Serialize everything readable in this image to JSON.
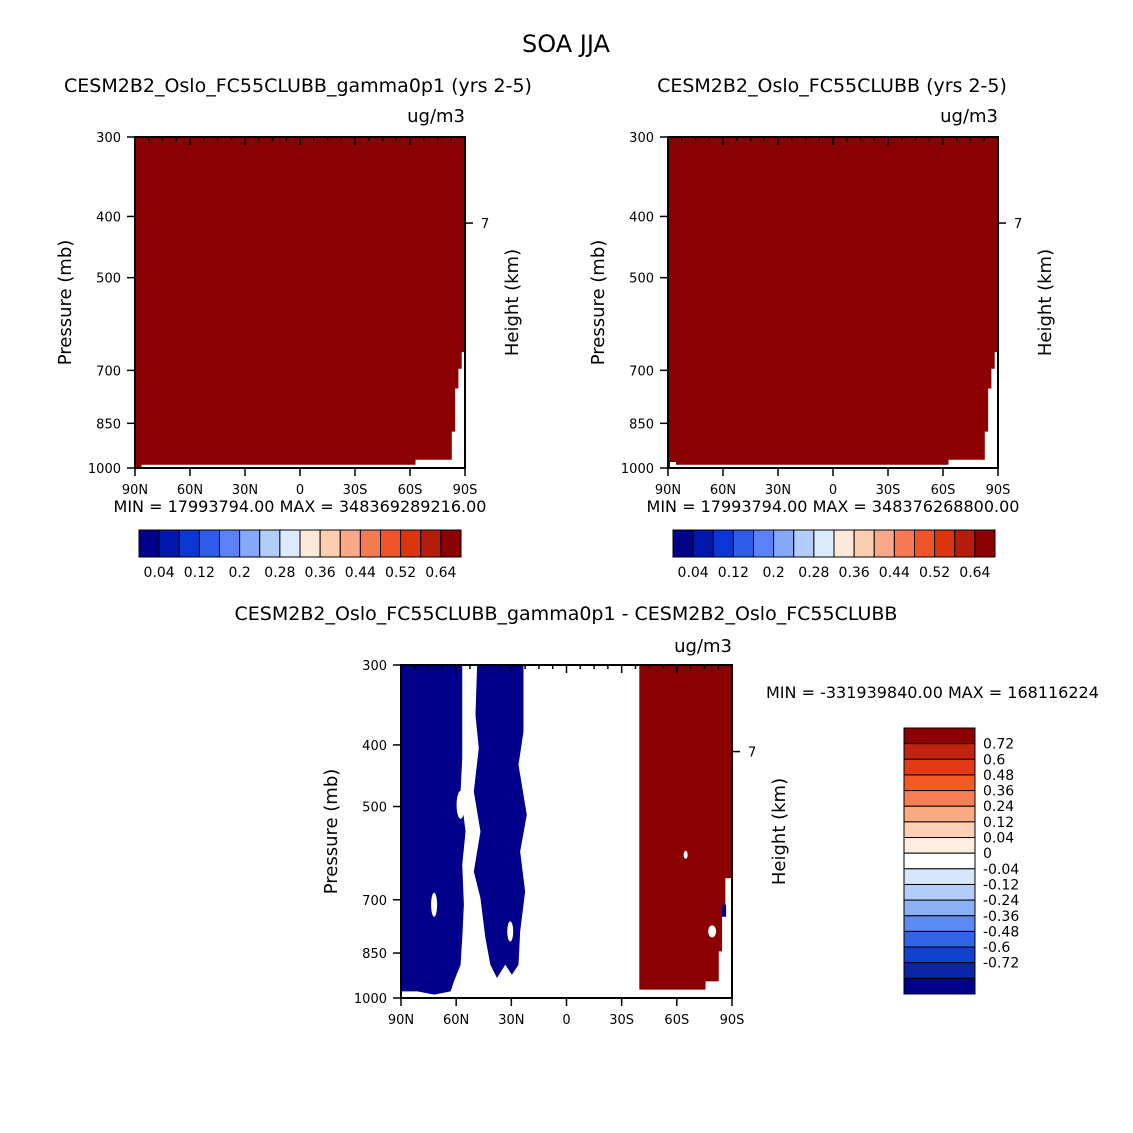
{
  "chart_data": {
    "title": "SOA JJA",
    "type": "heatmap",
    "panels": [
      {
        "id": "case",
        "title": "CESM2B2_Oslo_FC55CLUBB_gamma0p1 (yrs 2-5)",
        "units": "ug/m3",
        "ylabel": "Pressure (mb)",
        "ylabel_right": "Height (km)",
        "x_ticks": [
          "90N",
          "60N",
          "30N",
          "0",
          "30S",
          "60S",
          "90S"
        ],
        "y_ticks": [
          "300",
          "400",
          "500",
          "700",
          "850",
          "1000"
        ],
        "right_ticks": [
          "7"
        ],
        "stats": "MIN = 17993794.00   MAX = 348369289216.00",
        "fill": "above all levels (>0.64) everywhere except small gaps near the surface at southern high latitudes"
      },
      {
        "id": "control",
        "title": "CESM2B2_Oslo_FC55CLUBB (yrs 2-5)",
        "units": "ug/m3",
        "ylabel": "Pressure (mb)",
        "ylabel_right": "Height (km)",
        "x_ticks": [
          "90N",
          "60N",
          "30N",
          "0",
          "30S",
          "60S",
          "90S"
        ],
        "y_ticks": [
          "300",
          "400",
          "500",
          "700",
          "850",
          "1000"
        ],
        "right_ticks": [
          "7"
        ],
        "stats": "MIN = 17993794.00   MAX = 348376268800.00",
        "fill": "above all levels (>0.64) everywhere except small gaps near the surface at southern high latitudes"
      },
      {
        "id": "difference",
        "title": "CESM2B2_Oslo_FC55CLUBB_gamma0p1 - CESM2B2_Oslo_FC55CLUBB",
        "units": "ug/m3",
        "ylabel": "Pressure (mb)",
        "ylabel_right": "Height (km)",
        "x_ticks": [
          "90N",
          "60N",
          "30N",
          "0",
          "30S",
          "60S",
          "90S"
        ],
        "y_ticks": [
          "300",
          "400",
          "500",
          "700",
          "850",
          "1000"
        ],
        "right_ticks": [
          "7"
        ],
        "stats": "MIN = -331939840.00   MAX = 168116224",
        "fill": "below -0.72 over about 90N-60N and 50N-25N; above 0.72 over about 40S-90S"
      }
    ],
    "colorbar_top": {
      "labels": [
        "0.04",
        "0.12",
        "0.2",
        "0.28",
        "0.36",
        "0.44",
        "0.52",
        "0.64"
      ],
      "colors": [
        "#00008b",
        "#0018b0",
        "#0a36d6",
        "#2f5be8",
        "#5a82f5",
        "#86a8f8",
        "#b3cdfb",
        "#dceafd",
        "#fde9d7",
        "#fdcdb0",
        "#f9a888",
        "#f77b52",
        "#f0542a",
        "#dd3410",
        "#b51d0a",
        "#8b0000"
      ]
    },
    "colorbar_diff": {
      "labels": [
        "0.72",
        "0.6",
        "0.48",
        "0.36",
        "0.24",
        "0.12",
        "0.04",
        "0",
        "-0.04",
        "-0.12",
        "-0.24",
        "-0.36",
        "-0.48",
        "-0.6",
        "-0.72"
      ],
      "colors": [
        "#8b0000",
        "#c02510",
        "#e23a12",
        "#f45a22",
        "#f77d52",
        "#fba982",
        "#fdd0b6",
        "#fdeedf",
        "#ffffff",
        "#d6e7fb",
        "#b3cdf9",
        "#8ab0f7",
        "#5d89f2",
        "#3464e6",
        "#1240cf",
        "#0b25a8",
        "#00008b"
      ]
    }
  }
}
